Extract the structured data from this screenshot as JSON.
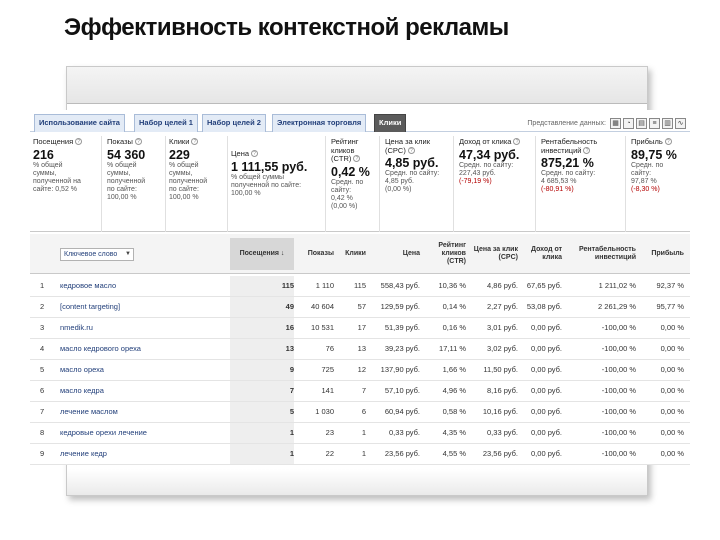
{
  "slide": {
    "title": "Эффективность контекстной рекламы"
  },
  "tabs": [
    {
      "label": "Использование сайта"
    },
    {
      "label": "Набор целей 1"
    },
    {
      "label": "Набор целей 2"
    },
    {
      "label": "Электронная торговля"
    },
    {
      "label": "Клики"
    }
  ],
  "view": {
    "label": "Представление данных:"
  },
  "summary": [
    {
      "title": "Посещения",
      "value": "216",
      "sub": [
        "% общей",
        "суммы,",
        "полученной на",
        "сайте: 0,52 %"
      ],
      "extra": ""
    },
    {
      "title": "Показы",
      "value": "54 360",
      "sub": [
        "% общей",
        "суммы,",
        "полученной",
        "по сайте:",
        "100,00 %"
      ],
      "extra": ""
    },
    {
      "title": "Клики",
      "value": "229",
      "sub": [
        "% общей",
        "суммы,",
        "полученной",
        "по сайте:",
        "100,00 %"
      ],
      "extra": ""
    },
    {
      "title": "Цена",
      "value": "1 111,55 руб.",
      "sub": [
        "% общей суммы",
        "полученной по сайте:",
        "100,00 %"
      ],
      "extra": ""
    },
    {
      "title": "Рейтинг кликов (CTR)",
      "value": "0,42 %",
      "sub": [
        "Средн. по",
        "сайту:",
        "0,42 %",
        "(0,00 %)"
      ],
      "extra": ""
    },
    {
      "title": "Цена за клик (CPC)",
      "value": "4,85 руб.",
      "sub": [
        "Средн. по сайту: 4,85 руб.",
        "(0,00 %)"
      ],
      "extra": ""
    },
    {
      "title": "Доход от клика",
      "value": "47,34 руб.",
      "sub": [
        "Средн. по сайту:",
        "227,43 руб."
      ],
      "extra": "(-79,19 %)"
    },
    {
      "title": "Рентабельность инвестиций",
      "value": "875,21 %",
      "sub": [
        "Средн. по сайту:",
        "4 685,53 %"
      ],
      "extra": "(-80,91 %)"
    },
    {
      "title": "Прибыль",
      "value": "89,75 %",
      "sub": [
        "Средн. по",
        "сайту:",
        "97,87 %"
      ],
      "extra": "(-8,30 %)"
    }
  ],
  "table": {
    "keyword_select": "Ключевое слово",
    "columns": [
      "Посещения ↓",
      "Показы",
      "Клики",
      "Цена",
      "Рейтинг кликов (CTR)",
      "Цена за клик (CPC)",
      "Доход от клика",
      "Рентабельность инвестиций",
      "Прибыль"
    ],
    "rows": [
      [
        "1",
        "кедровое масло",
        "115",
        "1 110",
        "115",
        "558,43 руб.",
        "10,36 %",
        "4,86 руб.",
        "67,65 руб.",
        "1 211,02 %",
        "92,37 %"
      ],
      [
        "2",
        "[content targeting]",
        "49",
        "40 604",
        "57",
        "129,59 руб.",
        "0,14 %",
        "2,27 руб.",
        "53,08 руб.",
        "2 261,29 %",
        "95,77 %"
      ],
      [
        "3",
        "nmedik.ru",
        "16",
        "10 531",
        "17",
        "51,39 руб.",
        "0,16 %",
        "3,01 руб.",
        "0,00 руб.",
        "-100,00 %",
        "0,00 %"
      ],
      [
        "4",
        "масло кедрового ореха",
        "13",
        "76",
        "13",
        "39,23 руб.",
        "17,11 %",
        "3,02 руб.",
        "0,00 руб.",
        "-100,00 %",
        "0,00 %"
      ],
      [
        "5",
        "масло ореха",
        "9",
        "725",
        "12",
        "137,90 руб.",
        "1,66 %",
        "11,50 руб.",
        "0,00 руб.",
        "-100,00 %",
        "0,00 %"
      ],
      [
        "6",
        "масло кедра",
        "7",
        "141",
        "7",
        "57,10 руб.",
        "4,96 %",
        "8,16 руб.",
        "0,00 руб.",
        "-100,00 %",
        "0,00 %"
      ],
      [
        "7",
        "лечение маслом",
        "5",
        "1 030",
        "6",
        "60,94 руб.",
        "0,58 %",
        "10,16 руб.",
        "0,00 руб.",
        "-100,00 %",
        "0,00 %"
      ],
      [
        "8",
        "кедровые орехи лечение",
        "1",
        "23",
        "1",
        "0,33 руб.",
        "4,35 %",
        "0,33 руб.",
        "0,00 руб.",
        "-100,00 %",
        "0,00 %"
      ],
      [
        "9",
        "лечение кедр",
        "1",
        "22",
        "1",
        "23,56 руб.",
        "4,55 %",
        "23,56 руб.",
        "0,00 руб.",
        "-100,00 %",
        "0,00 %"
      ]
    ]
  }
}
